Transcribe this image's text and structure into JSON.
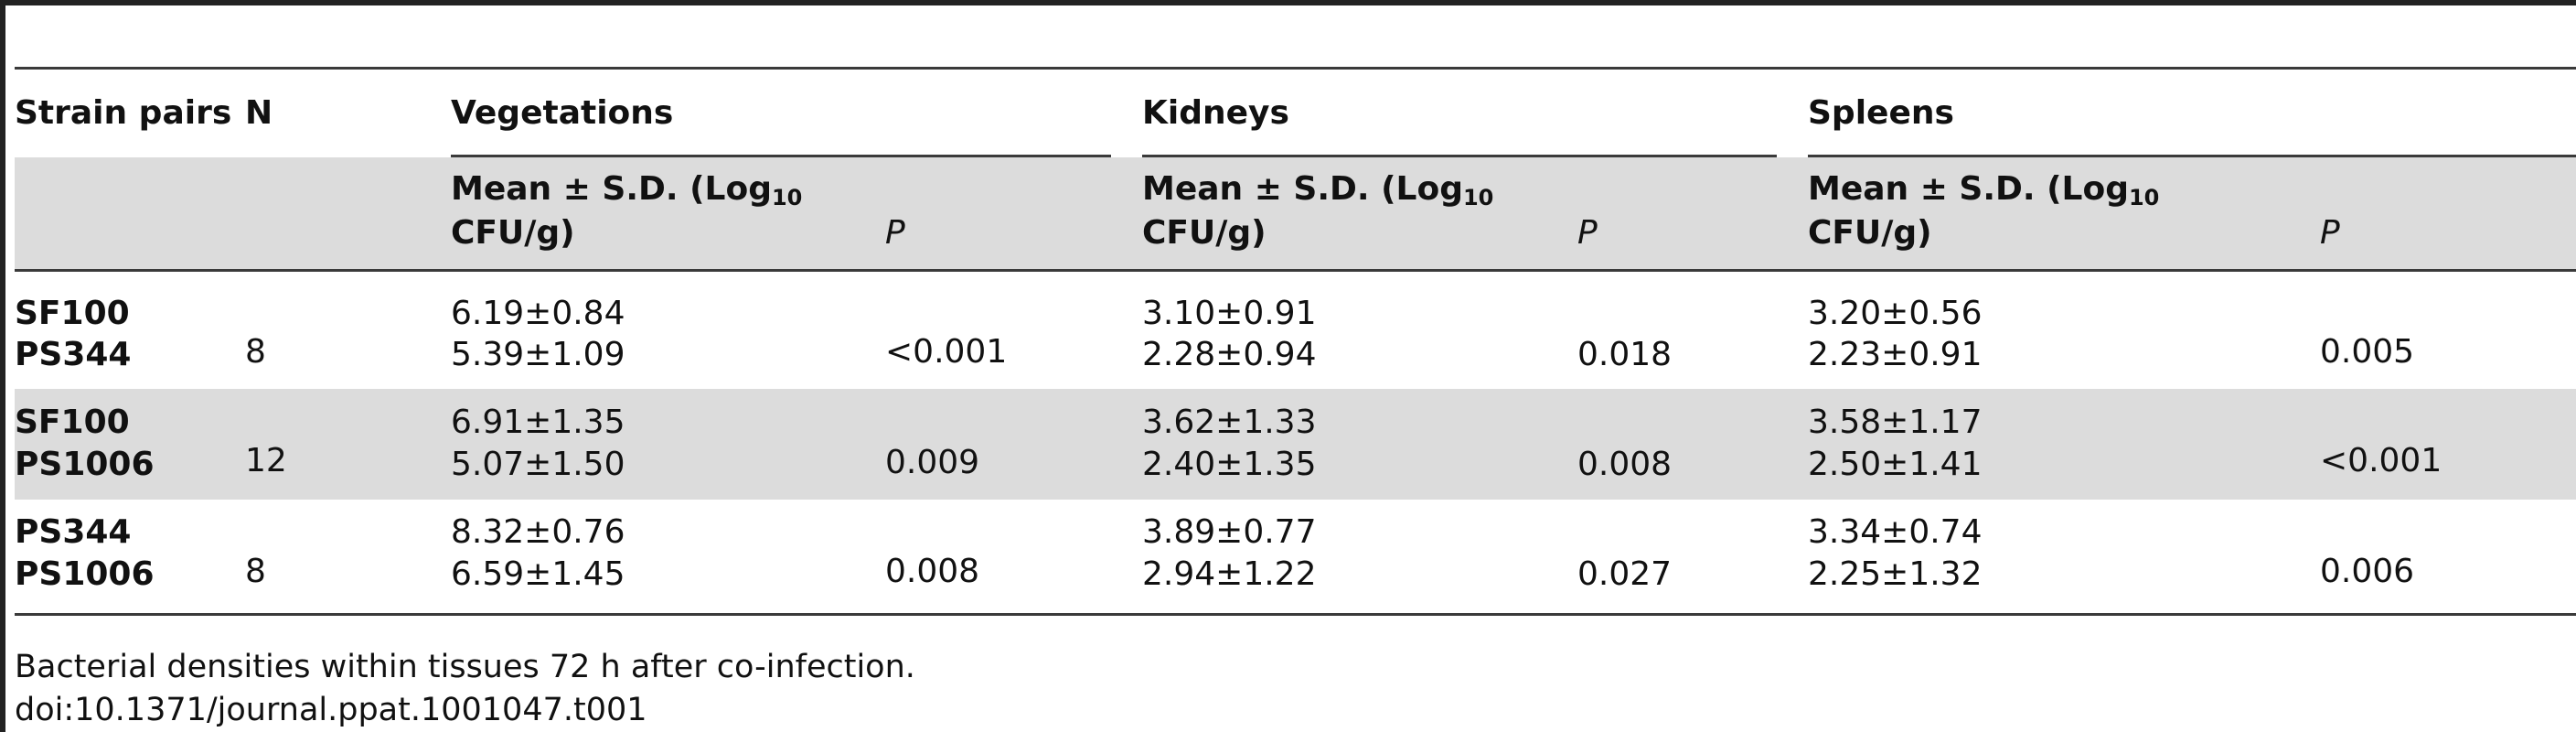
{
  "table": {
    "headers": {
      "strain_pairs": "Strain pairs",
      "n": "N",
      "vegetations": "Vegetations",
      "kidneys": "Kidneys",
      "spleens": "Spleens",
      "mean_sd_prefix": "Mean ± S.D. (Log",
      "mean_sd_sub": "10",
      "mean_sd_suffix": "CFU/g)",
      "p": "P"
    },
    "rows": [
      {
        "strain_a": "SF100",
        "strain_b": "PS344",
        "n": "8",
        "veg_a": "6.19±0.84",
        "veg_b": "5.39±1.09",
        "veg_p": "<0.001",
        "kid_a": "3.10±0.91",
        "kid_b": "2.28±0.94",
        "kid_p": "0.018",
        "spl_a": "3.20±0.56",
        "spl_b": "2.23±0.91",
        "spl_p": "0.005"
      },
      {
        "strain_a": "SF100",
        "strain_b": "PS1006",
        "n": "12",
        "veg_a": "6.91±1.35",
        "veg_b": "5.07±1.50",
        "veg_p": "0.009",
        "kid_a": "3.62±1.33",
        "kid_b": "2.40±1.35",
        "kid_p": "0.008",
        "spl_a": "3.58±1.17",
        "spl_b": "2.50±1.41",
        "spl_p": "<0.001"
      },
      {
        "strain_a": "PS344",
        "strain_b": "PS1006",
        "n": "8",
        "veg_a": "8.32±0.76",
        "veg_b": "6.59±1.45",
        "veg_p": "0.008",
        "kid_a": "3.89±0.77",
        "kid_b": "2.94±1.22",
        "kid_p": "0.027",
        "spl_a": "3.34±0.74",
        "spl_b": "2.25±1.32",
        "spl_p": "0.006"
      }
    ]
  },
  "footer": {
    "caption": "Bacterial densities within tissues 72 h after co-infection.",
    "doi": "doi:10.1371/journal.ppat.1001047.t001"
  }
}
